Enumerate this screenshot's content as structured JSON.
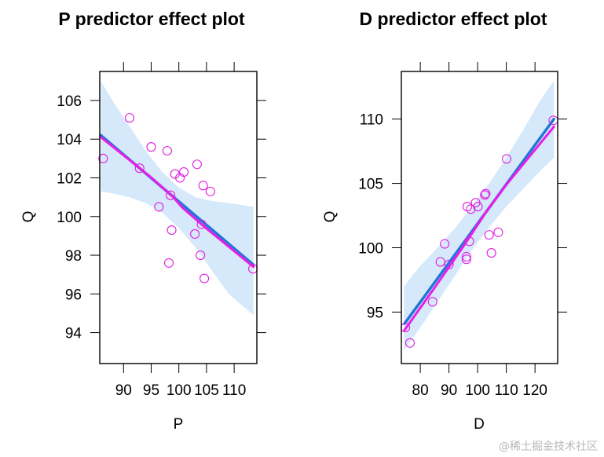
{
  "colors": {
    "band": "#d6e9fb",
    "fit_line": "#1f78d6",
    "smooth_line": "#e81ee8",
    "points": "#e01ee0",
    "axis": "#000000"
  },
  "watermark": "@稀土掘金技术社区",
  "chart_data": [
    {
      "type": "scatter",
      "title": "P predictor effect plot",
      "xlabel": "P",
      "ylabel": "Q",
      "xlim": [
        85.7,
        114.1
      ],
      "ylim": [
        92.4,
        107.5
      ],
      "xticks": [
        90,
        95,
        100,
        105,
        110
      ],
      "xtick_labels": [
        "90",
        "95",
        "100",
        "105",
        "110"
      ],
      "yticks": [
        94,
        96,
        98,
        100,
        102,
        104,
        106
      ],
      "ytick_labels": [
        "94",
        "96",
        "98",
        "100",
        "102",
        "104",
        "106"
      ],
      "grid": false,
      "points": [
        {
          "x": 86.3,
          "y": 103.0
        },
        {
          "x": 91.1,
          "y": 105.1
        },
        {
          "x": 95.0,
          "y": 103.6
        },
        {
          "x": 97.9,
          "y": 103.4
        },
        {
          "x": 92.9,
          "y": 102.5
        },
        {
          "x": 103.3,
          "y": 102.7
        },
        {
          "x": 99.3,
          "y": 102.2
        },
        {
          "x": 100.9,
          "y": 102.3
        },
        {
          "x": 100.2,
          "y": 102.0
        },
        {
          "x": 104.4,
          "y": 101.6
        },
        {
          "x": 105.7,
          "y": 101.3
        },
        {
          "x": 98.5,
          "y": 101.1
        },
        {
          "x": 96.4,
          "y": 100.5
        },
        {
          "x": 104.1,
          "y": 99.6
        },
        {
          "x": 98.7,
          "y": 99.3
        },
        {
          "x": 102.9,
          "y": 99.1
        },
        {
          "x": 103.9,
          "y": 98.0
        },
        {
          "x": 98.2,
          "y": 97.6
        },
        {
          "x": 104.6,
          "y": 96.8
        },
        {
          "x": 113.4,
          "y": 97.3
        }
      ],
      "fit_line": [
        {
          "x": 85.9,
          "y": 104.2
        },
        {
          "x": 113.5,
          "y": 97.5
        }
      ],
      "smooth_line": [
        {
          "x": 85.9,
          "y": 104.1
        },
        {
          "x": 92.5,
          "y": 102.6
        },
        {
          "x": 95.5,
          "y": 101.9
        },
        {
          "x": 99.0,
          "y": 101.0
        },
        {
          "x": 100.5,
          "y": 100.5
        },
        {
          "x": 104.5,
          "y": 99.5
        },
        {
          "x": 113.5,
          "y": 97.4
        }
      ],
      "band": {
        "x": [
          85.9,
          88.0,
          91.0,
          94.0,
          97.0,
          100.0,
          103.0,
          106.0,
          109.0,
          113.5
        ],
        "upper": [
          107.0,
          106.0,
          104.7,
          103.4,
          102.3,
          101.5,
          101.0,
          100.8,
          100.7,
          100.5
        ],
        "lower": [
          101.3,
          101.2,
          101.0,
          100.7,
          100.2,
          99.4,
          98.4,
          97.2,
          96.0,
          94.9
        ]
      }
    },
    {
      "type": "scatter",
      "title": "D predictor effect plot",
      "xlabel": "D",
      "ylabel": "Q",
      "xlim": [
        73.4,
        127.9
      ],
      "ylim": [
        91.0,
        113.7
      ],
      "xticks": [
        80,
        90,
        100,
        110,
        120
      ],
      "xtick_labels": [
        "80",
        "90",
        "100",
        "110",
        "120"
      ],
      "yticks": [
        95,
        100,
        105,
        110
      ],
      "ytick_labels": [
        "95",
        "100",
        "105",
        "110"
      ],
      "grid": false,
      "points": [
        {
          "x": 126.4,
          "y": 109.9
        },
        {
          "x": 110.1,
          "y": 106.9
        },
        {
          "x": 102.8,
          "y": 104.2
        },
        {
          "x": 102.5,
          "y": 104.1
        },
        {
          "x": 96.4,
          "y": 103.2
        },
        {
          "x": 97.6,
          "y": 103.0
        },
        {
          "x": 99.3,
          "y": 103.5
        },
        {
          "x": 100.1,
          "y": 103.2
        },
        {
          "x": 97.1,
          "y": 100.5
        },
        {
          "x": 104.0,
          "y": 101.0
        },
        {
          "x": 107.2,
          "y": 101.2
        },
        {
          "x": 88.5,
          "y": 100.3
        },
        {
          "x": 96.1,
          "y": 99.3
        },
        {
          "x": 96.1,
          "y": 99.1
        },
        {
          "x": 104.8,
          "y": 99.6
        },
        {
          "x": 87.0,
          "y": 98.9
        },
        {
          "x": 90.0,
          "y": 98.7
        },
        {
          "x": 84.3,
          "y": 95.8
        },
        {
          "x": 74.8,
          "y": 93.8
        },
        {
          "x": 76.4,
          "y": 92.6
        }
      ],
      "fit_line": [
        {
          "x": 74.5,
          "y": 94.1
        },
        {
          "x": 126.6,
          "y": 110.0
        }
      ],
      "smooth_line": [
        {
          "x": 74.5,
          "y": 93.6
        },
        {
          "x": 85.0,
          "y": 96.9
        },
        {
          "x": 95.0,
          "y": 100.1
        },
        {
          "x": 103.0,
          "y": 102.8
        },
        {
          "x": 110.0,
          "y": 104.9
        },
        {
          "x": 126.6,
          "y": 109.4
        }
      ],
      "band": {
        "x": [
          74.3,
          80.0,
          86.0,
          92.0,
          98.0,
          104.0,
          110.0,
          116.0,
          122.0,
          126.6
        ],
        "upper": [
          97.0,
          98.6,
          100.0,
          101.5,
          103.2,
          105.0,
          107.0,
          109.2,
          111.5,
          113.0
        ],
        "lower": [
          92.0,
          93.8,
          95.8,
          97.8,
          99.8,
          101.6,
          103.2,
          104.6,
          106.0,
          107.0
        ]
      }
    }
  ]
}
